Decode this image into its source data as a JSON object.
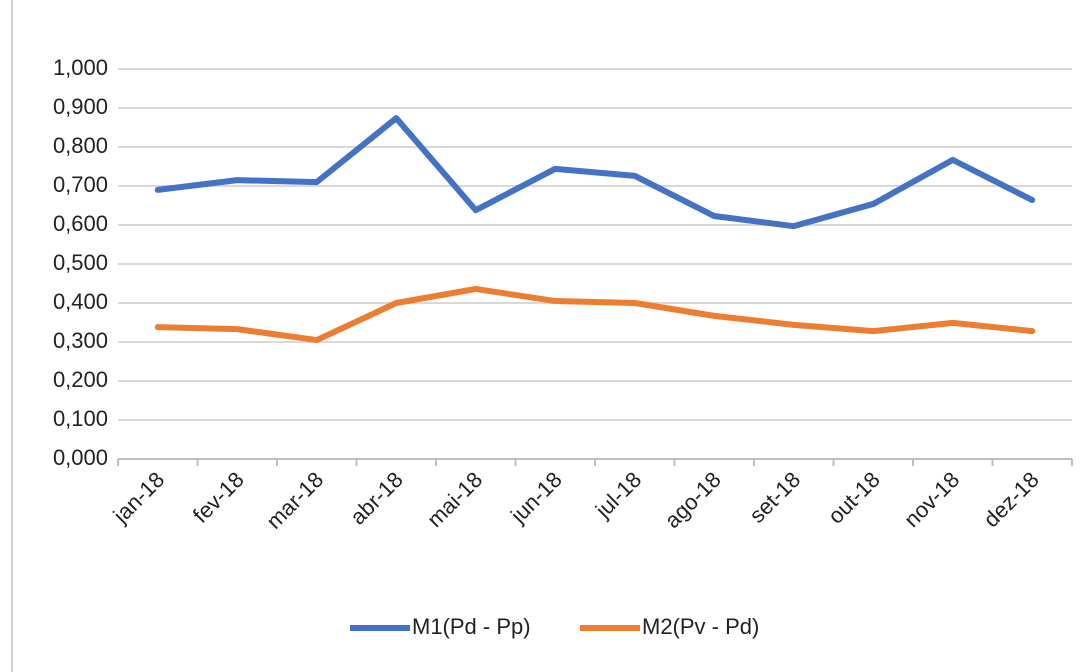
{
  "chart_data": {
    "type": "line",
    "categories": [
      "jan-18",
      "fev-18",
      "mar-18",
      "abr-18",
      "mai-18",
      "jun-18",
      "jul-18",
      "ago-18",
      "set-18",
      "out-18",
      "nov-18",
      "dez-18"
    ],
    "series": [
      {
        "name": "M1(Pd - Pp)",
        "color": "#4472c4",
        "values": [
          0.69,
          0.715,
          0.71,
          0.874,
          0.638,
          0.744,
          0.726,
          0.623,
          0.597,
          0.654,
          0.767,
          0.664
        ]
      },
      {
        "name": "M2(Pv - Pd)",
        "color": "#ed7d31",
        "values": [
          0.338,
          0.333,
          0.305,
          0.4,
          0.436,
          0.405,
          0.4,
          0.367,
          0.344,
          0.328,
          0.349,
          0.328
        ]
      }
    ],
    "ylim": [
      0,
      1
    ],
    "yticks": [
      {
        "value": 0,
        "label": "0,000"
      },
      {
        "value": 0.1,
        "label": "0,100"
      },
      {
        "value": 0.2,
        "label": "0,200"
      },
      {
        "value": 0.3,
        "label": "0,300"
      },
      {
        "value": 0.4,
        "label": "0,400"
      },
      {
        "value": 0.5,
        "label": "0,500"
      },
      {
        "value": 0.6,
        "label": "0,600"
      },
      {
        "value": 0.7,
        "label": "0,700"
      },
      {
        "value": 0.8,
        "label": "0,800"
      },
      {
        "value": 0.9,
        "label": "0,900"
      },
      {
        "value": 1,
        "label": "1,000"
      }
    ],
    "grid": true,
    "legend": "bottom"
  }
}
